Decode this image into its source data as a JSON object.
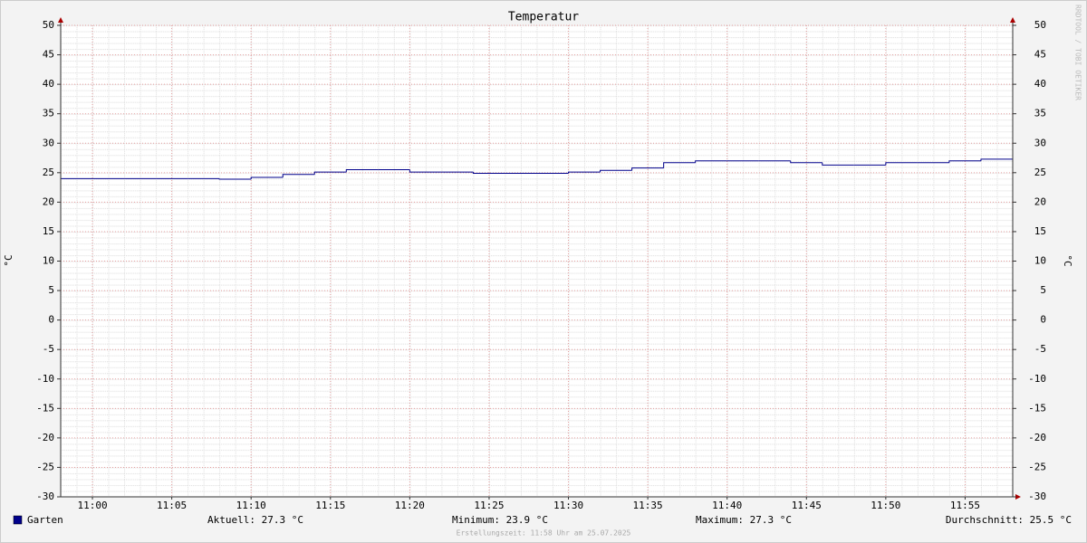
{
  "chart_data": {
    "type": "line",
    "step": "post",
    "title": "Temperatur",
    "y_label": "°C",
    "y2_label": "°C",
    "x": [
      "10:58",
      "11:00",
      "11:02",
      "11:04",
      "11:06",
      "11:08",
      "11:10",
      "11:12",
      "11:14",
      "11:16",
      "11:18",
      "11:20",
      "11:22",
      "11:24",
      "11:26",
      "11:28",
      "11:30",
      "11:32",
      "11:34",
      "11:36",
      "11:38",
      "11:40",
      "11:42",
      "11:44",
      "11:46",
      "11:48",
      "11:50",
      "11:52",
      "11:54",
      "11:56"
    ],
    "series": [
      {
        "name": "Garten",
        "color": "#00008b",
        "values": [
          24.0,
          24.0,
          24.0,
          24.0,
          24.0,
          23.9,
          24.2,
          24.7,
          25.1,
          25.5,
          25.5,
          25.1,
          25.1,
          24.9,
          24.9,
          24.9,
          25.1,
          25.4,
          25.8,
          26.7,
          27.0,
          27.0,
          27.0,
          26.7,
          26.3,
          26.3,
          26.7,
          26.7,
          27.0,
          27.3
        ]
      }
    ],
    "xlim": [
      "10:58",
      "11:58"
    ],
    "xticks": [
      "11:00",
      "11:05",
      "11:10",
      "11:15",
      "11:20",
      "11:25",
      "11:30",
      "11:35",
      "11:40",
      "11:45",
      "11:50",
      "11:55"
    ],
    "ylim": [
      -30,
      50
    ],
    "yticks": [
      -30,
      -25,
      -20,
      -15,
      -10,
      -5,
      0,
      5,
      10,
      15,
      20,
      25,
      30,
      35,
      40,
      45,
      50
    ],
    "y2lim": [
      -30,
      50
    ],
    "y2ticks": [
      -30,
      -25,
      -20,
      -15,
      -10,
      -5,
      0,
      5,
      10,
      15,
      20,
      25,
      30,
      35,
      40,
      45,
      50
    ],
    "grid": true,
    "legend_stats": [
      "Aktuell: 27.3 °C",
      "Minimum: 23.9 °C",
      "Maximum: 27.3 °C",
      "Durchschnitt: 25.5 °C"
    ],
    "footer": "Erstellungszeit: 11:58 Uhr am 25.07.2025",
    "watermark": "RRDTOOL / TOBI OETIKER"
  }
}
